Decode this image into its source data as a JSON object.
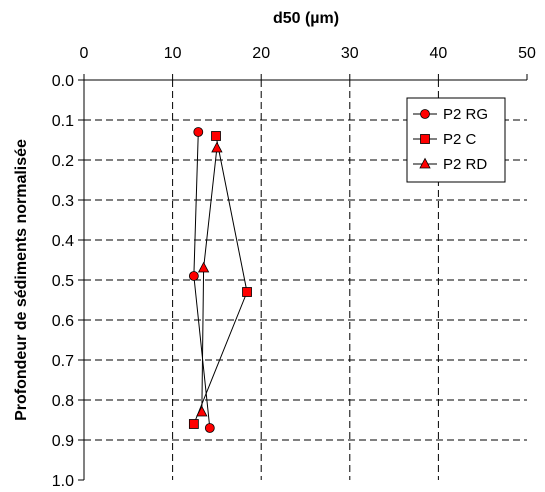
{
  "chart_data": {
    "type": "line",
    "title": "",
    "xlabel": "d50 (µm)",
    "ylabel": "Profondeur de sédiments normalisée",
    "xlim": [
      0,
      50
    ],
    "ylim": [
      1.0,
      0.0
    ],
    "x_axis_position": "top",
    "y_inverted": true,
    "grid": true,
    "legend_position": "top-right",
    "x_ticks": [
      "0",
      "10",
      "20",
      "30",
      "40",
      "50"
    ],
    "y_ticks": [
      "0.0",
      "0.1",
      "0.2",
      "0.3",
      "0.4",
      "0.5",
      "0.6",
      "0.7",
      "0.8",
      "0.9",
      "1.0"
    ],
    "series": [
      {
        "name": "P2 RG",
        "marker": "circle",
        "color": "#ff0000",
        "points": [
          {
            "x": 12.9,
            "y": 0.13
          },
          {
            "x": 12.4,
            "y": 0.49
          },
          {
            "x": 14.2,
            "y": 0.87
          }
        ]
      },
      {
        "name": "P2 C",
        "marker": "square",
        "color": "#ff0000",
        "points": [
          {
            "x": 14.9,
            "y": 0.14
          },
          {
            "x": 18.4,
            "y": 0.53
          },
          {
            "x": 12.4,
            "y": 0.86
          }
        ]
      },
      {
        "name": "P2 RD",
        "marker": "triangle",
        "color": "#ff0000",
        "points": [
          {
            "x": 15.0,
            "y": 0.17
          },
          {
            "x": 13.5,
            "y": 0.47
          },
          {
            "x": 13.3,
            "y": 0.83
          }
        ]
      }
    ]
  }
}
